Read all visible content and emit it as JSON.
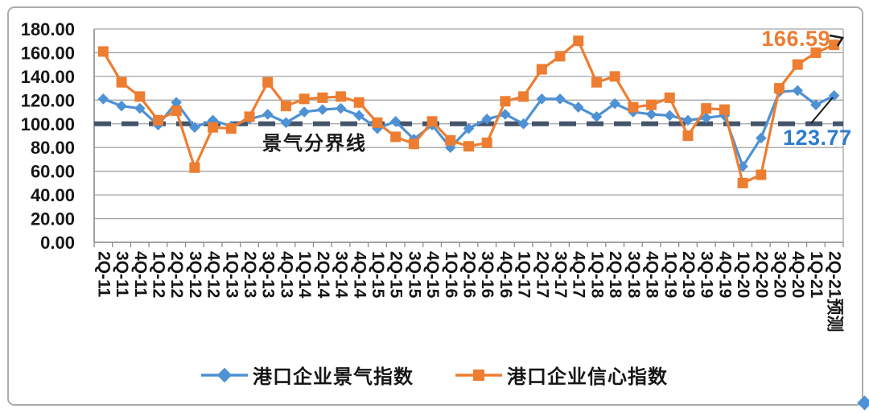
{
  "chart_data": {
    "type": "line",
    "title": "",
    "categories": [
      "2Q-11",
      "3Q-11",
      "4Q-11",
      "1Q-12",
      "2Q-12",
      "3Q-12",
      "4Q-12",
      "1Q-13",
      "2Q-13",
      "3Q-13",
      "4Q-13",
      "1Q-14",
      "2Q-14",
      "3Q-14",
      "4Q-14",
      "1Q-15",
      "2Q-15",
      "3Q-15",
      "4Q-15",
      "1Q-16",
      "2Q-16",
      "3Q-16",
      "4Q-16",
      "1Q-17",
      "2Q-17",
      "3Q-17",
      "4Q-17",
      "1Q-18",
      "2Q-18",
      "3Q-18",
      "4Q-18",
      "1Q-19",
      "2Q-19",
      "3Q-19",
      "4Q-19",
      "1Q-20",
      "2Q-20",
      "3Q-20",
      "4Q-20",
      "1Q-21",
      "2Q-21预测"
    ],
    "series": [
      {
        "name": "港口企业景气指数",
        "marker": "diamond",
        "color": "#4E91D4",
        "values": [
          121,
          115,
          113,
          99,
          118,
          97,
          103,
          98,
          104,
          108,
          101,
          110,
          112,
          113,
          107,
          96,
          102,
          87,
          99,
          80,
          96,
          104,
          108,
          100,
          121,
          121,
          114,
          106,
          117,
          110,
          108,
          107,
          103,
          105,
          107,
          64,
          88,
          127,
          128,
          116,
          123.77
        ]
      },
      {
        "name": "港口企业信心指数",
        "marker": "square",
        "color": "#ED7D31",
        "values": [
          161,
          135,
          123,
          103,
          111,
          63,
          97,
          96,
          106,
          135,
          115,
          121,
          122,
          123,
          118,
          101,
          89,
          83,
          102,
          86,
          81,
          84,
          119,
          123,
          146,
          157,
          170,
          135,
          140,
          114,
          116,
          122,
          90,
          113,
          112,
          50,
          57,
          130,
          150,
          160,
          166.59
        ]
      }
    ],
    "ylim": [
      0,
      180
    ],
    "ytick_step": 20,
    "ytick_labels": [
      "0.00",
      "20.00",
      "40.00",
      "60.00",
      "80.00",
      "100.00",
      "120.00",
      "140.00",
      "160.00",
      "180.00"
    ],
    "x_label_rotation": 90,
    "grid": true,
    "grid_color": "#A3A3A3",
    "axis_color": "#8C8C8C",
    "reference_line": {
      "value": 100,
      "label": "景气分界线",
      "color": "#44546A",
      "style": "dashed"
    },
    "annotations": [
      {
        "text": "166.59",
        "series": "港口企业信心指数",
        "color": "#ED7D31"
      },
      {
        "text": "123.77",
        "series": "港口企业景气指数",
        "color": "#2F7BCB"
      }
    ],
    "legend_position": "bottom",
    "corner_marker_color": "#4E91D4"
  }
}
